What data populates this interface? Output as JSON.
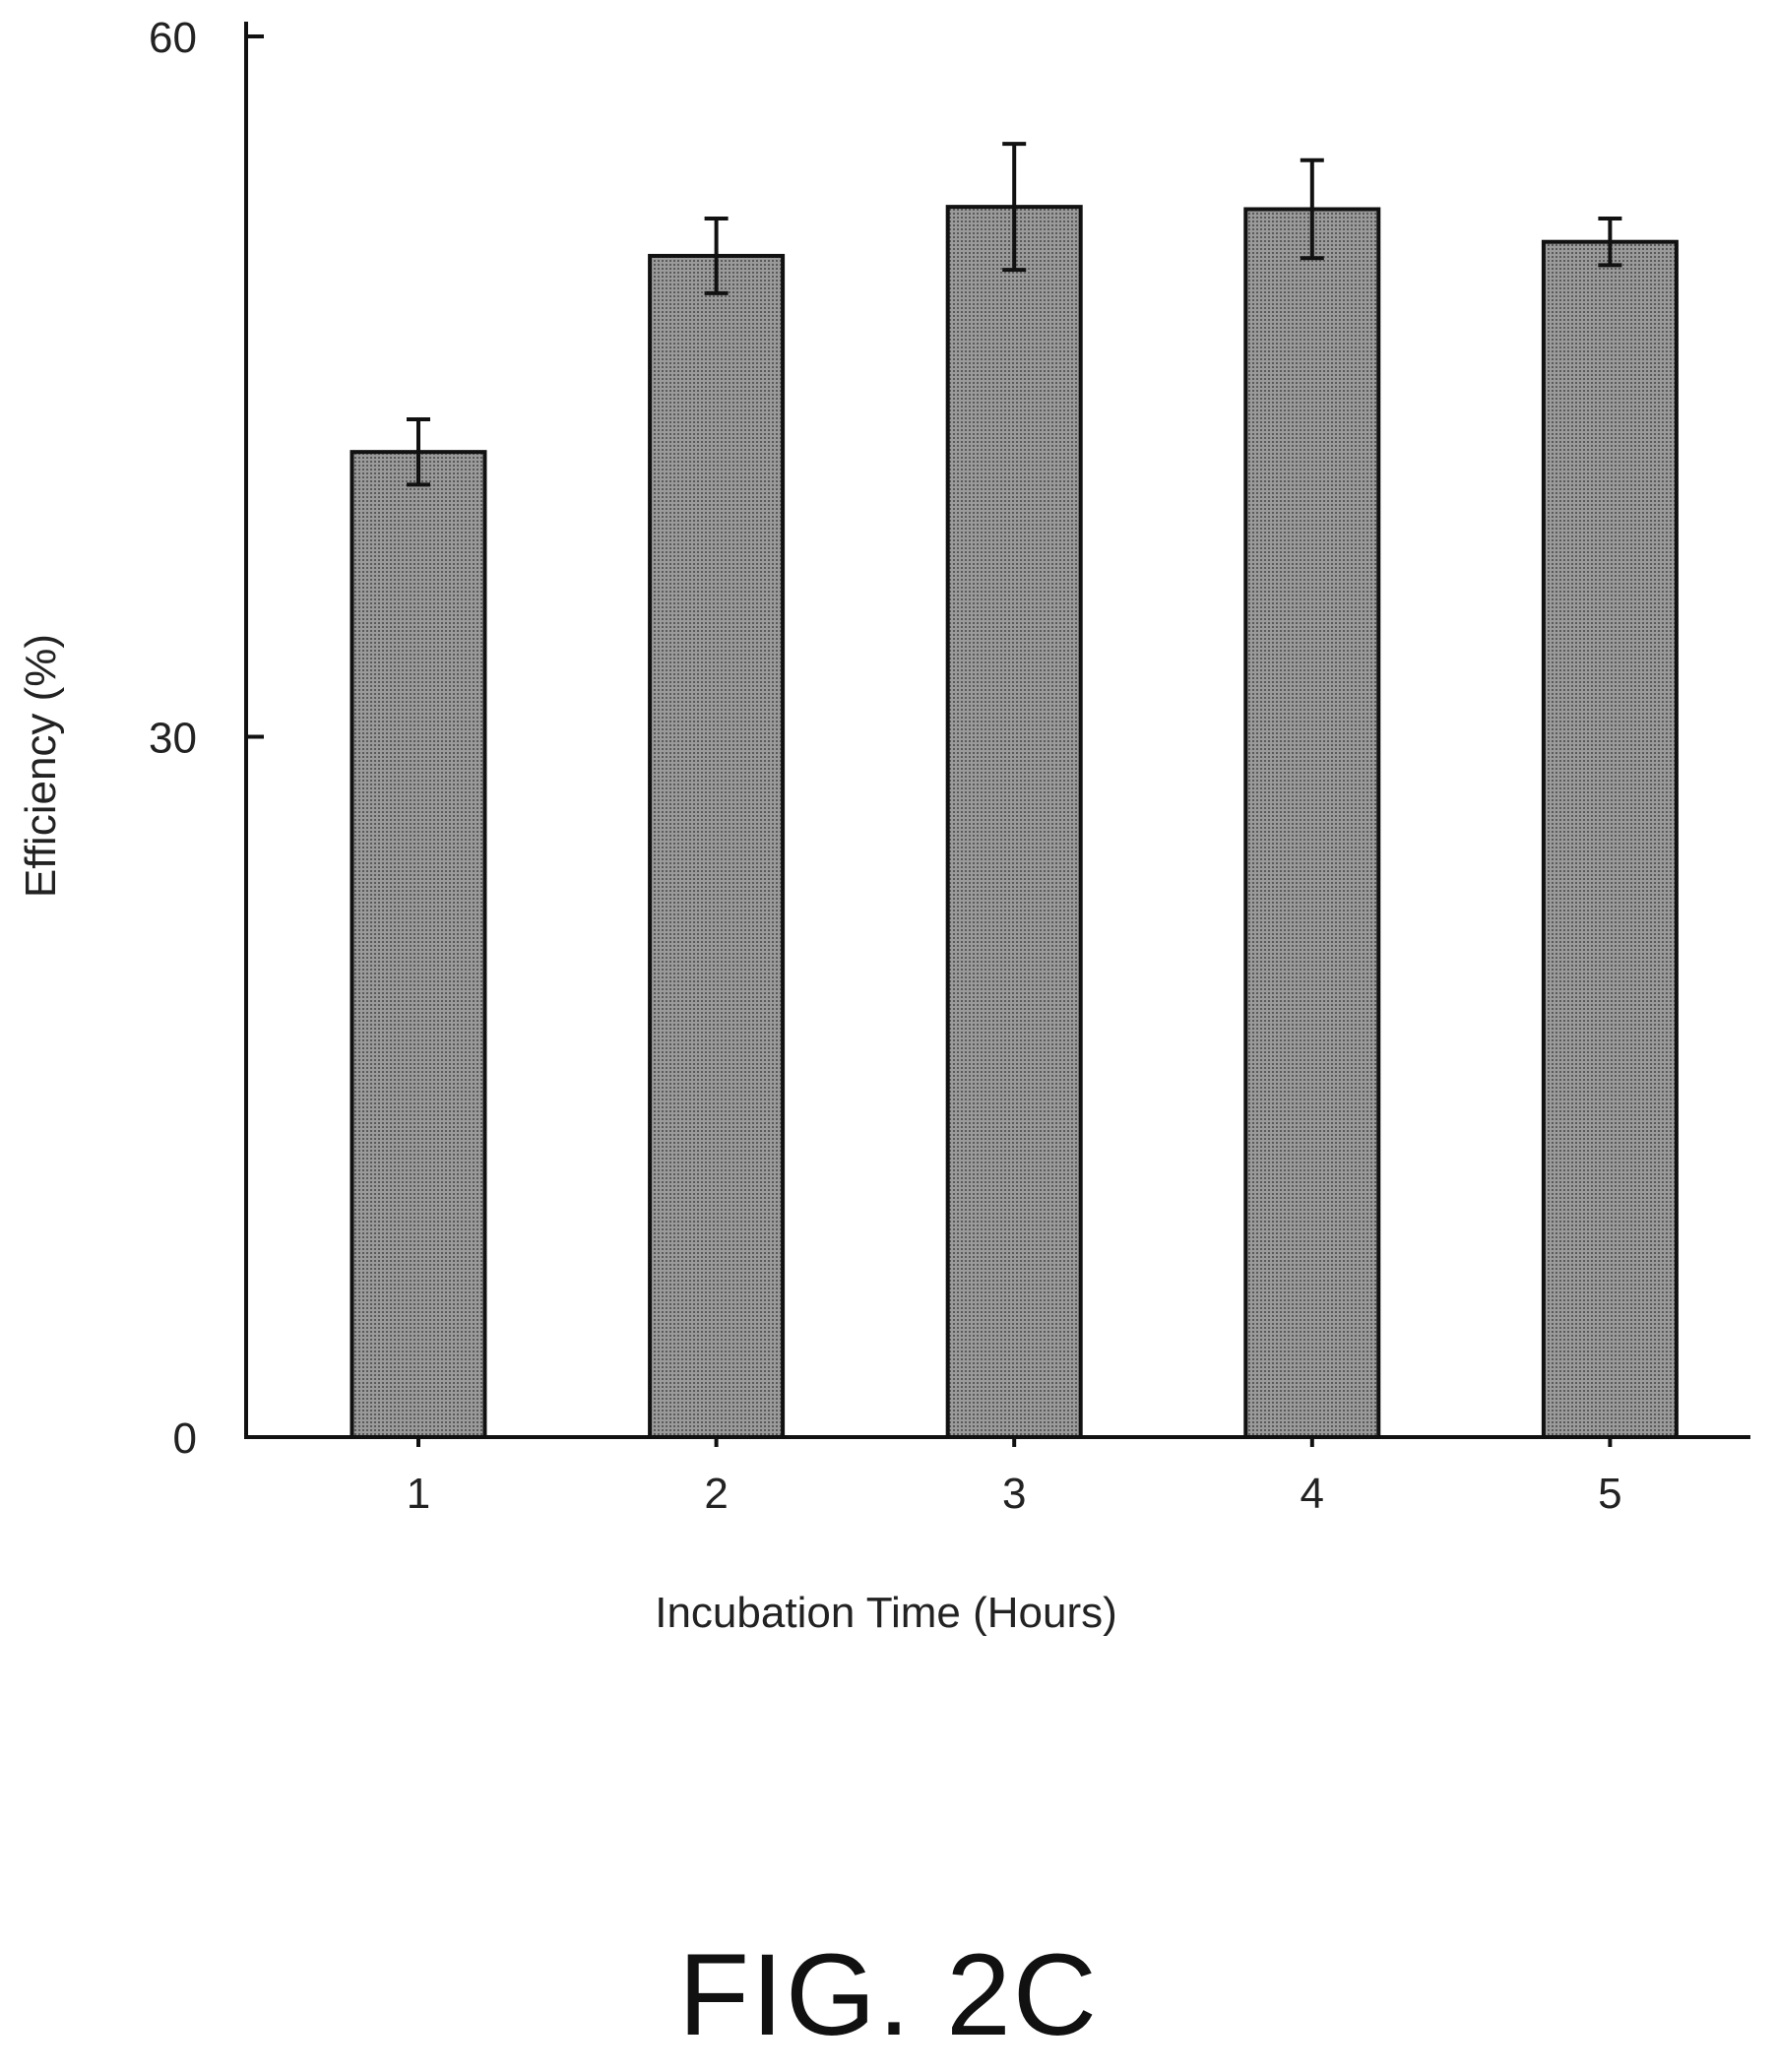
{
  "caption": "FIG. 2C",
  "chart_data": {
    "type": "bar",
    "title": "",
    "xlabel": "Incubation Time (Hours)",
    "ylabel": "Efficiency (%)",
    "categories": [
      "1",
      "2",
      "3",
      "4",
      "5"
    ],
    "values": [
      42.2,
      50.6,
      52.7,
      52.6,
      51.2
    ],
    "error": [
      1.4,
      1.6,
      2.7,
      2.1,
      1.0
    ],
    "ylim": [
      0,
      60
    ],
    "yticks": [
      "0",
      "30",
      "60"
    ],
    "grid": false,
    "legend": "none",
    "colors": {
      "bar_fill": "#8c8c8c",
      "bar_stroke": "#111111",
      "axis": "#111111"
    }
  }
}
